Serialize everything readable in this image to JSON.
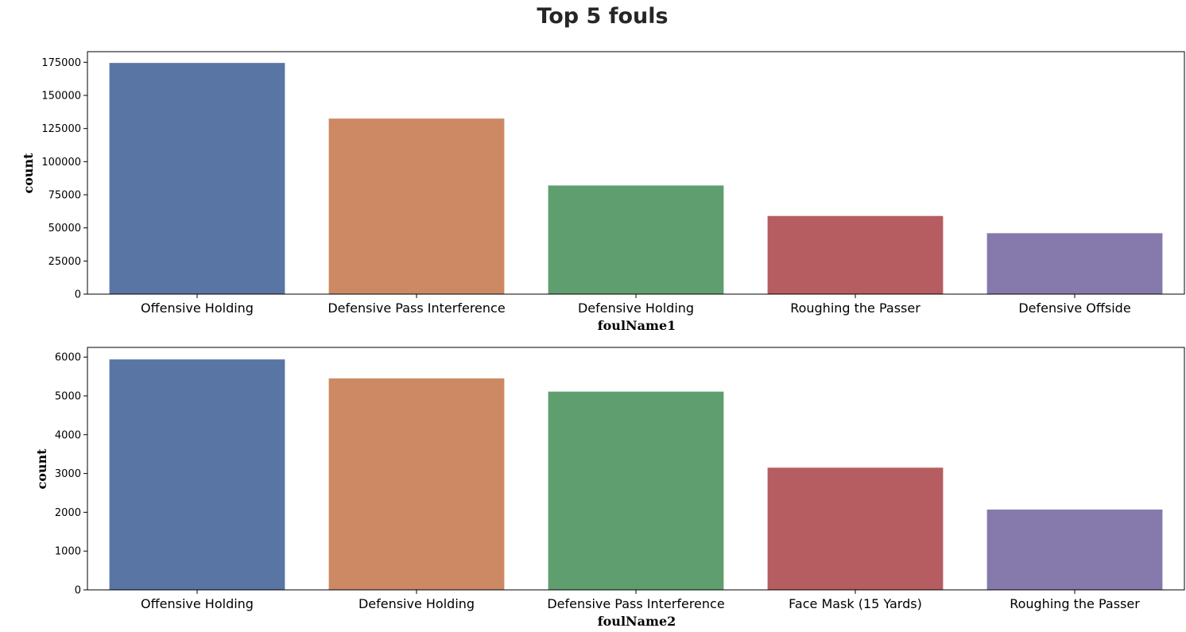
{
  "figure": {
    "title": "Top 5 fouls"
  },
  "chart_data": [
    {
      "type": "bar",
      "title": "",
      "xlabel": "foulName1",
      "ylabel": "count",
      "categories": [
        "Offensive Holding",
        "Defensive Pass Interference",
        "Defensive Holding",
        "Roughing the Passer",
        "Defensive Offside"
      ],
      "values": [
        174500,
        132500,
        82000,
        59000,
        46000
      ],
      "colors": [
        "#5975a4",
        "#cc8963",
        "#5f9e6e",
        "#b55d60",
        "#857aab"
      ],
      "ylim": [
        0,
        183000
      ],
      "yticks": [
        0,
        25000,
        50000,
        75000,
        100000,
        125000,
        150000,
        175000
      ],
      "grid": false
    },
    {
      "type": "bar",
      "title": "",
      "xlabel": "foulName2",
      "ylabel": "count",
      "categories": [
        "Offensive Holding",
        "Defensive Holding",
        "Defensive Pass Interference",
        "Face Mask (15 Yards)",
        "Roughing the Passer"
      ],
      "values": [
        5940,
        5450,
        5110,
        3150,
        2070
      ],
      "colors": [
        "#5975a4",
        "#cc8963",
        "#5f9e6e",
        "#b55d60",
        "#857aab"
      ],
      "ylim": [
        0,
        6250
      ],
      "yticks": [
        0,
        1000,
        2000,
        3000,
        4000,
        5000,
        6000
      ],
      "grid": false
    }
  ]
}
